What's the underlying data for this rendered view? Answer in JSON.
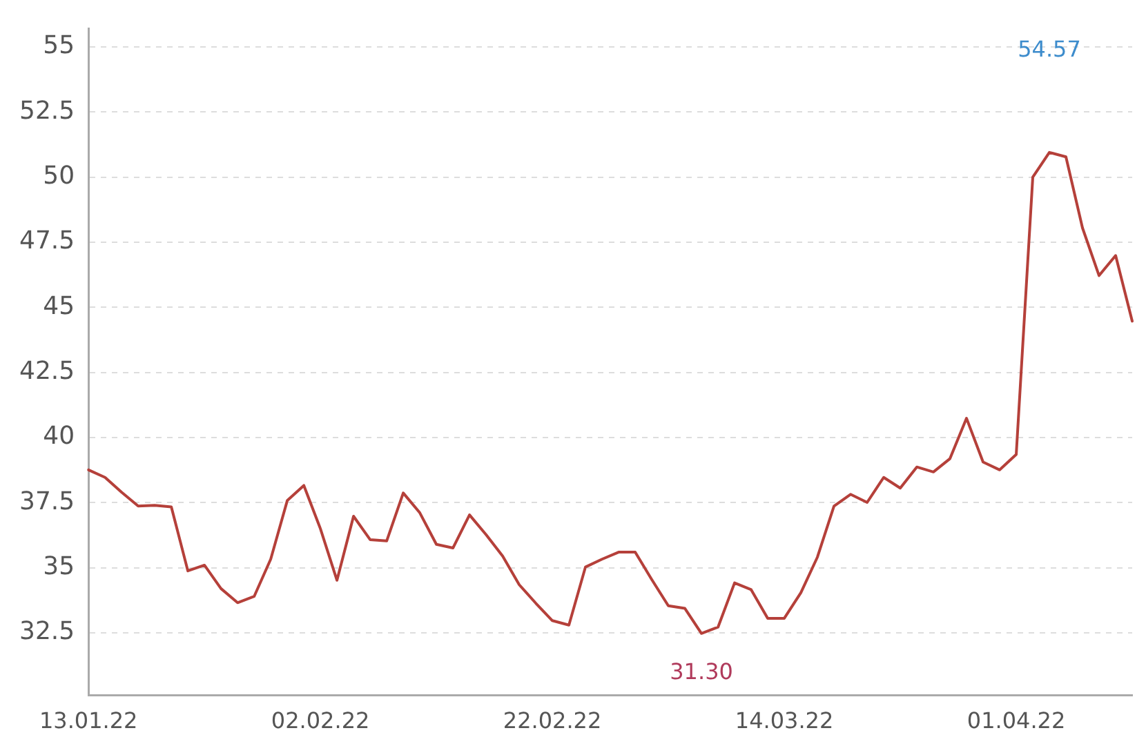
{
  "chart_data": {
    "type": "line",
    "categories": [
      "13.01.22",
      null,
      null,
      null,
      null,
      null,
      null,
      null,
      null,
      null,
      null,
      null,
      null,
      null,
      "02.02.22",
      null,
      null,
      null,
      null,
      null,
      null,
      null,
      null,
      null,
      null,
      null,
      null,
      null,
      "22.02.22",
      null,
      null,
      null,
      null,
      null,
      null,
      null,
      null,
      null,
      null,
      null,
      null,
      null,
      "14.03.22",
      null,
      null,
      null,
      null,
      null,
      null,
      null,
      null,
      null,
      null,
      null,
      null,
      null,
      "01.04.22",
      null,
      null,
      null,
      null,
      null,
      null,
      null
    ],
    "series": [
      {
        "color": "#b5403a",
        "values": [
          38.76,
          38.47,
          37.9,
          37.37,
          37.4,
          37.34,
          34.88,
          35.1,
          34.2,
          33.66,
          33.9,
          35.33,
          37.58,
          38.16,
          36.5,
          34.52,
          36.98,
          36.08,
          36.03,
          37.87,
          37.11,
          35.9,
          35.76,
          37.03,
          36.27,
          35.45,
          34.35,
          33.64,
          32.97,
          32.8,
          35.03,
          35.33,
          35.6,
          35.6,
          34.55,
          33.54,
          33.44,
          32.48,
          32.72,
          34.42,
          34.16,
          33.06,
          33.06,
          34.04,
          35.41,
          37.37,
          37.82,
          37.51,
          38.47,
          38.06,
          38.87,
          38.68,
          39.19,
          40.74,
          39.06,
          38.76,
          39.35,
          50.0,
          50.95,
          50.78,
          48.05,
          46.22,
          46.99,
          44.47
        ]
      }
    ],
    "ylim": [
      30.1,
      55.7
    ],
    "yticks": [
      32.5,
      35,
      37.5,
      40,
      42.5,
      45,
      47.5,
      50,
      52.5,
      55
    ],
    "grid": "y",
    "legend": false,
    "marker": "none",
    "line_style": "solid",
    "annotations": [
      "54.57",
      "31.30"
    ]
  }
}
